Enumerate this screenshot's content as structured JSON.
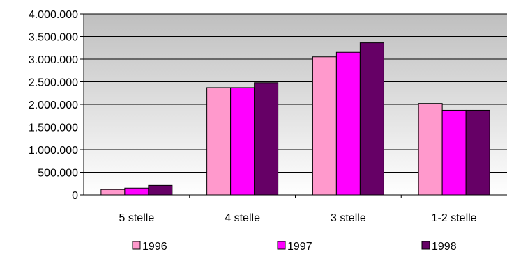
{
  "chart_data": {
    "type": "bar",
    "title": "",
    "xlabel": "",
    "ylabel": "",
    "categories": [
      "5 stelle",
      "4 stelle",
      "3 stelle",
      "1-2 stelle"
    ],
    "series": [
      {
        "name": "1996",
        "color": "#ff99cc",
        "values": [
          120000,
          2370000,
          3050000,
          2020000
        ]
      },
      {
        "name": "1997",
        "color": "#ff00ff",
        "values": [
          150000,
          2370000,
          3150000,
          1870000
        ]
      },
      {
        "name": "1998",
        "color": "#660066",
        "values": [
          210000,
          2480000,
          3360000,
          1870000
        ]
      }
    ],
    "ylim": [
      0,
      4000000
    ],
    "yticks": [
      0,
      500000,
      1000000,
      1500000,
      2000000,
      2500000,
      3000000,
      3500000,
      4000000
    ],
    "ytick_labels": [
      "0",
      "500.000",
      "1.000.000",
      "1.500.000",
      "2.000.000",
      "2.500.000",
      "3.000.000",
      "3.500.000",
      "4.000.000"
    ],
    "grid": true,
    "legend_position": "bottom",
    "plot_background": "gradient gray to white"
  }
}
